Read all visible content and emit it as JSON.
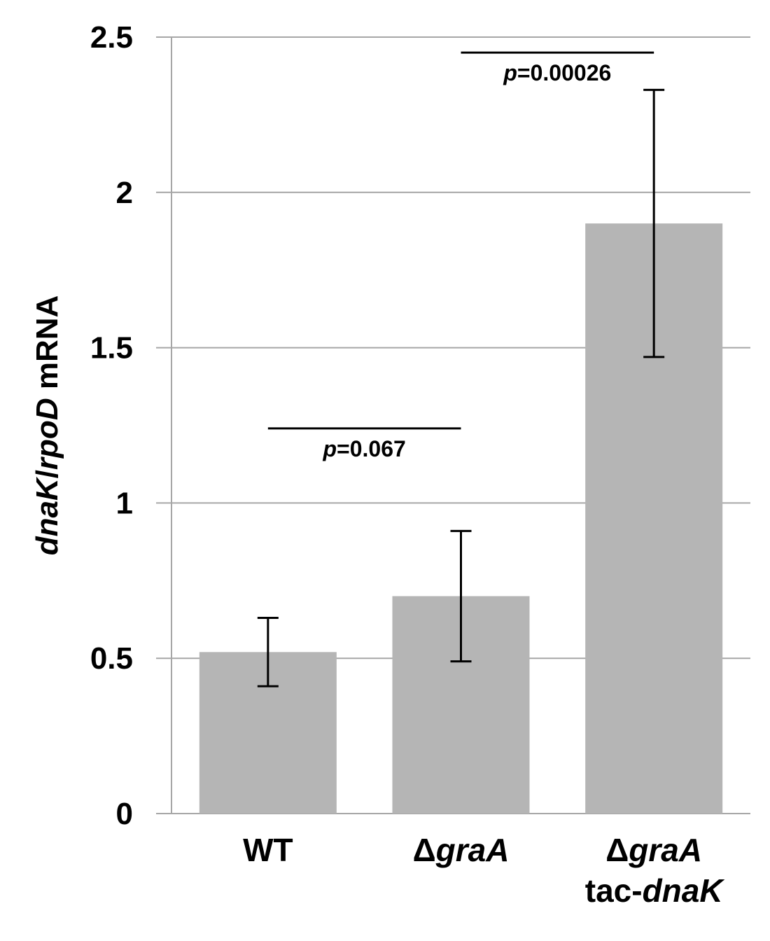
{
  "chart_data": {
    "type": "bar",
    "title": "",
    "xlabel": "",
    "ylabel_parts": [
      {
        "text": "dnaK",
        "italic": true
      },
      {
        "text": "/",
        "italic": false
      },
      {
        "text": "rpoD",
        "italic": true
      },
      {
        "text": " mRNA",
        "italic": false
      }
    ],
    "ylim": [
      0,
      2.5
    ],
    "yticks": [
      0,
      0.5,
      1,
      1.5,
      2,
      2.5
    ],
    "ytick_labels": [
      "0",
      "0.5",
      "1",
      "1.5",
      "2",
      "2.5"
    ],
    "grid": true,
    "bar_color": "#b5b5b5",
    "grid_color": "#a6a6a6",
    "categories": [
      {
        "lines": [
          [
            {
              "text": "WT",
              "italic": false
            }
          ]
        ]
      },
      {
        "lines": [
          [
            {
              "text": "Δ",
              "italic": false
            },
            {
              "text": "graA",
              "italic": true
            }
          ]
        ]
      },
      {
        "lines": [
          [
            {
              "text": "Δ",
              "italic": false
            },
            {
              "text": "graA",
              "italic": true
            }
          ],
          [
            {
              "text": "tac-",
              "italic": false
            },
            {
              "text": "dnaK",
              "italic": true
            }
          ]
        ]
      }
    ],
    "values": [
      0.52,
      0.7,
      1.9
    ],
    "error_low": [
      0.41,
      0.49,
      1.47
    ],
    "error_high": [
      0.63,
      0.91,
      2.33
    ],
    "significance": [
      {
        "from": 0,
        "to": 1,
        "y": 1.24,
        "p_prefix": "p",
        "p_value": "=0.067"
      },
      {
        "from": 1,
        "to": 2,
        "y": 2.45,
        "p_prefix": "p",
        "p_value": "=0.00026"
      }
    ]
  }
}
